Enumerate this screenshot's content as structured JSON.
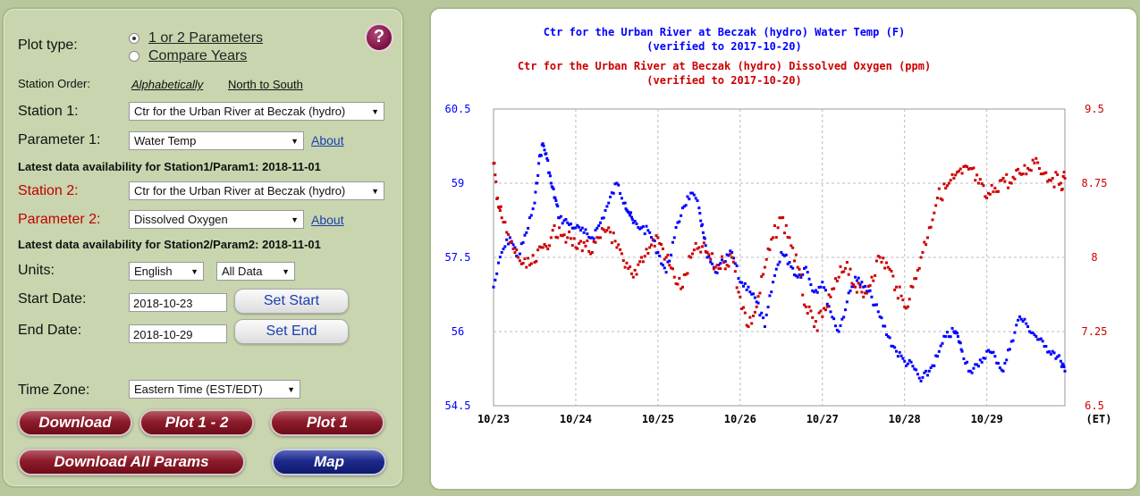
{
  "controls": {
    "plot_type_label": "Plot type:",
    "plot_type_options": [
      "1 or 2 Parameters",
      "Compare Years"
    ],
    "station_order_label": "Station Order:",
    "station_order_options": [
      "Alphabetically",
      "North to South"
    ],
    "station1_label": "Station 1:",
    "station1_value": "Ctr for the Urban River at Beczak (hydro)",
    "param1_label": "Parameter 1:",
    "param1_value": "Water Temp",
    "about_label": "About",
    "latest1": "Latest data availability for Station1/Param1: 2018-11-01",
    "station2_label": "Station 2:",
    "station2_value": "Ctr for the Urban River at Beczak (hydro)",
    "param2_label": "Parameter 2:",
    "param2_value": "Dissolved Oxygen",
    "latest2": "Latest data availability for Station2/Param2: 2018-11-01",
    "units_label": "Units:",
    "units_value": "English",
    "data_value": "All Data",
    "start_label": "Start Date:",
    "start_value": "2018-10-23",
    "set_start": "Set Start",
    "end_label": "End Date:",
    "end_value": "2018-10-29",
    "set_end": "Set End",
    "tz_label": "Time Zone:",
    "tz_value": "Eastern Time (EST/EDT)",
    "help_glyph": "?",
    "buttons": {
      "download": "Download",
      "plot12": "Plot 1 - 2",
      "plot1": "Plot 1",
      "download_all": "Download All Params",
      "map": "Map"
    }
  },
  "colors": {
    "series1": "#0000ff",
    "series2": "#cc0000",
    "grid": "#bbbbbb"
  },
  "chart_data": {
    "type": "scatter",
    "title_lines": [
      {
        "text": "Ctr for the Urban River at Beczak (hydro) Water Temp (F)",
        "series": 0
      },
      {
        "text": "(verified to 2017-10-20)",
        "series": 0
      },
      {
        "text": "Ctr for the Urban River at Beczak (hydro) Dissolved Oxygen (ppm)",
        "series": 1
      },
      {
        "text": "(verified to 2017-10-20)",
        "series": 1
      }
    ],
    "x_tick_labels": [
      "10/23",
      "10/24",
      "10/25",
      "10/26",
      "10/27",
      "10/28",
      "10/29"
    ],
    "x_unit_label": "(ET)",
    "xlim": [
      0,
      6.95
    ],
    "left_axis": {
      "ylim": [
        54.5,
        60.5
      ],
      "ticks": [
        "60.5",
        "59",
        "57.5",
        "56",
        "54.5"
      ]
    },
    "right_axis": {
      "ylim": [
        6.5,
        9.5
      ],
      "ticks": [
        "9.5",
        "8.75",
        "8",
        "7.25",
        "6.5"
      ]
    },
    "grid": true,
    "series": [
      {
        "axis": "left",
        "x": [
          0.0,
          0.1,
          0.2,
          0.3,
          0.4,
          0.5,
          0.55,
          0.6,
          0.65,
          0.7,
          0.75,
          0.8,
          0.9,
          1.0,
          1.1,
          1.2,
          1.3,
          1.4,
          1.5,
          1.6,
          1.65,
          1.7,
          1.8,
          1.9,
          2.0,
          2.1,
          2.2,
          2.3,
          2.4,
          2.5,
          2.55,
          2.6,
          2.7,
          2.8,
          2.9,
          3.0,
          3.1,
          3.2,
          3.3,
          3.4,
          3.5,
          3.6,
          3.7,
          3.8,
          3.9,
          4.0,
          4.1,
          4.2,
          4.3,
          4.4,
          4.5,
          4.6,
          4.7,
          4.8,
          4.9,
          5.0,
          5.1,
          5.2,
          5.3,
          5.4,
          5.5,
          5.6,
          5.65,
          5.7,
          5.8,
          5.9,
          6.0,
          6.1,
          6.2,
          6.3,
          6.4,
          6.5,
          6.6,
          6.7,
          6.8,
          6.9,
          6.95
        ],
        "y": [
          56.9,
          57.6,
          57.9,
          57.5,
          58.0,
          58.6,
          59.4,
          59.8,
          59.5,
          59.0,
          58.7,
          58.3,
          58.2,
          58.1,
          58.0,
          57.9,
          58.2,
          58.6,
          59.0,
          58.6,
          58.4,
          58.2,
          58.1,
          58.0,
          57.6,
          57.2,
          57.9,
          58.5,
          58.8,
          58.5,
          58.0,
          57.5,
          57.2,
          57.4,
          57.6,
          57.0,
          56.9,
          56.6,
          56.1,
          57.0,
          57.6,
          57.4,
          57.1,
          57.3,
          56.8,
          57.0,
          56.4,
          56.0,
          56.6,
          57.1,
          56.9,
          56.7,
          56.3,
          55.9,
          55.6,
          55.4,
          55.3,
          55.0,
          55.2,
          55.5,
          55.9,
          56.0,
          55.9,
          55.6,
          55.2,
          55.3,
          55.6,
          55.5,
          55.2,
          55.8,
          56.3,
          56.1,
          55.9,
          55.7,
          55.6,
          55.4,
          55.2
        ]
      },
      {
        "axis": "right",
        "x": [
          0.0,
          0.05,
          0.1,
          0.2,
          0.3,
          0.4,
          0.5,
          0.6,
          0.7,
          0.8,
          0.9,
          1.0,
          1.1,
          1.2,
          1.3,
          1.4,
          1.5,
          1.6,
          1.7,
          1.8,
          1.9,
          2.0,
          2.1,
          2.2,
          2.3,
          2.4,
          2.5,
          2.6,
          2.7,
          2.8,
          2.9,
          3.0,
          3.1,
          3.2,
          3.3,
          3.4,
          3.5,
          3.6,
          3.7,
          3.8,
          3.9,
          4.0,
          4.1,
          4.2,
          4.3,
          4.4,
          4.5,
          4.6,
          4.7,
          4.8,
          4.9,
          5.0,
          5.1,
          5.2,
          5.3,
          5.4,
          5.5,
          5.6,
          5.7,
          5.8,
          5.9,
          6.0,
          6.1,
          6.2,
          6.3,
          6.4,
          6.5,
          6.6,
          6.7,
          6.8,
          6.9,
          6.95
        ],
        "y": [
          8.95,
          8.6,
          8.4,
          8.15,
          8.0,
          7.9,
          7.95,
          8.1,
          8.2,
          8.3,
          8.2,
          8.1,
          8.15,
          8.05,
          8.2,
          8.3,
          8.1,
          7.9,
          7.8,
          8.0,
          8.1,
          8.2,
          8.0,
          7.8,
          7.7,
          8.0,
          8.1,
          8.05,
          7.9,
          7.95,
          8.0,
          7.6,
          7.3,
          7.5,
          7.9,
          8.2,
          8.4,
          8.2,
          7.9,
          7.5,
          7.3,
          7.4,
          7.6,
          7.8,
          7.95,
          7.7,
          7.6,
          7.8,
          8.0,
          7.9,
          7.7,
          7.5,
          7.7,
          8.0,
          8.3,
          8.6,
          8.7,
          8.8,
          8.85,
          8.9,
          8.75,
          8.6,
          8.7,
          8.8,
          8.75,
          8.85,
          8.9,
          9.0,
          8.85,
          8.8,
          8.75,
          8.8
        ]
      }
    ]
  }
}
